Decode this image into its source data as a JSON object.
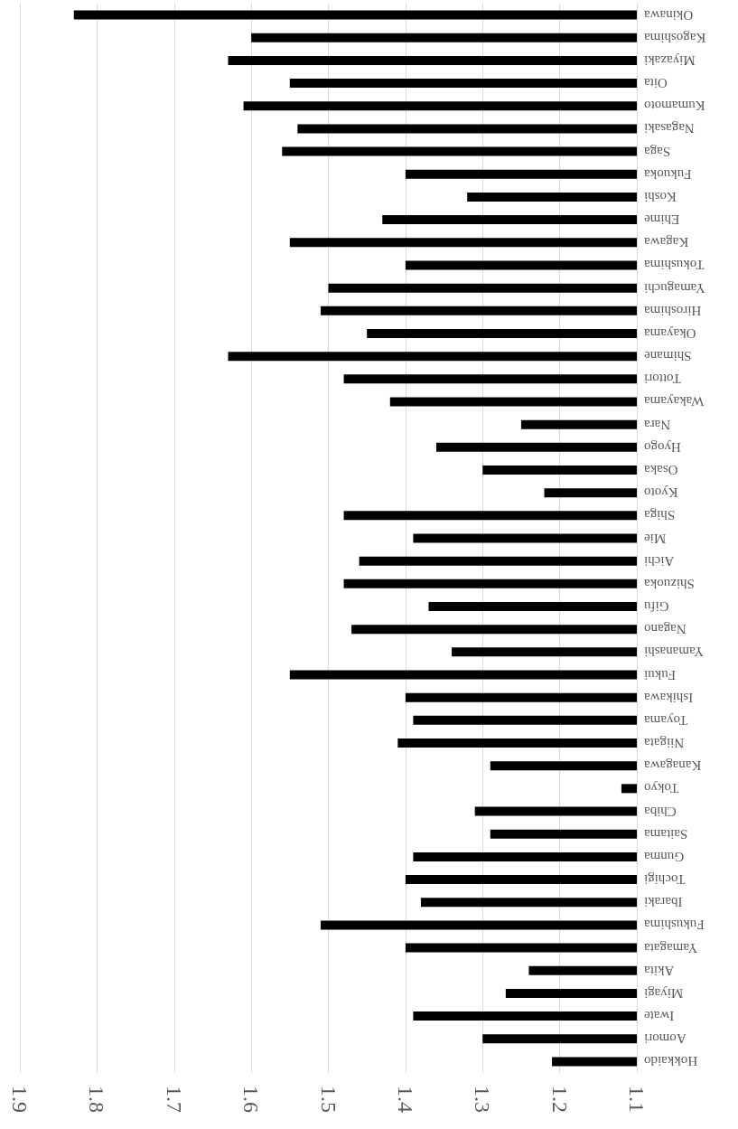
{
  "chart_data": {
    "type": "bar",
    "orientation": "horizontal",
    "categories": [
      "Okinawa",
      "Kagoshima",
      "Miyazaki",
      "Oita",
      "Kumamoto",
      "Nagasaki",
      "Saga",
      "Fukuoka",
      "Koshi",
      "Ehime",
      "Kagawa",
      "Tokushima",
      "Yamaguchi",
      "Hiroshima",
      "Okayama",
      "Shimane",
      "Tottori",
      "Wakayama",
      "Nara",
      "Hyogo",
      "Osaka",
      "Kyoto",
      "Shiga",
      "Mie",
      "Aichi",
      "Shizuoka",
      "Gifu",
      "Nagano",
      "Yamanashi",
      "Fukui",
      "Ishikawa",
      "Toyama",
      "Niigata",
      "Kanagawa",
      "Tokyo",
      "Chiba",
      "Saitama",
      "Gunma",
      "Tochigi",
      "Ibaraki",
      "Fukushima",
      "Yamagata",
      "Akita",
      "Miyagi",
      "Iwate",
      "Aomori",
      "Hokkaido"
    ],
    "values": [
      1.83,
      1.6,
      1.63,
      1.55,
      1.61,
      1.54,
      1.56,
      1.4,
      1.32,
      1.43,
      1.55,
      1.4,
      1.5,
      1.51,
      1.45,
      1.63,
      1.48,
      1.42,
      1.25,
      1.36,
      1.3,
      1.22,
      1.48,
      1.39,
      1.46,
      1.48,
      1.37,
      1.47,
      1.34,
      1.55,
      1.4,
      1.39,
      1.41,
      1.29,
      1.12,
      1.31,
      1.29,
      1.39,
      1.4,
      1.38,
      1.51,
      1.4,
      1.24,
      1.27,
      1.39,
      1.3,
      1.21
    ],
    "color": "#000000",
    "xlim": [
      1.9,
      1.1
    ],
    "xticks": [
      1.9,
      1.8,
      1.7,
      1.6,
      1.5,
      1.4,
      1.3,
      1.2,
      1.1
    ],
    "grid": true
  }
}
